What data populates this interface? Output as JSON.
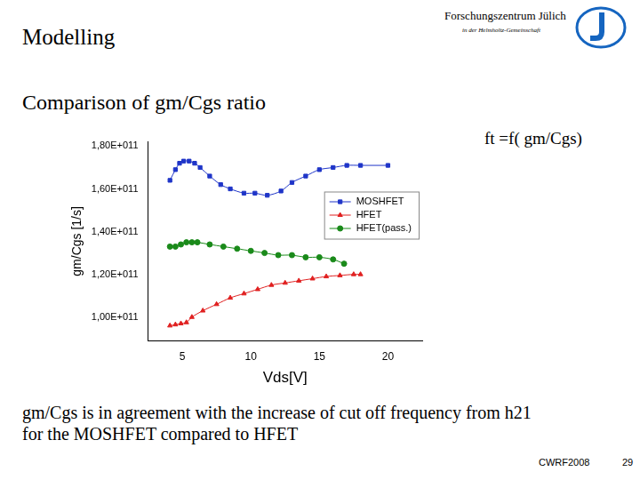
{
  "slide": {
    "title": "Modelling",
    "organization": "Forschungszentrum Jülich",
    "organization_sub": "in der Helmholtz-Gemeinschaft",
    "subtitle": "Comparison of gm/Cgs ratio",
    "formula": "ft =f( gm/Cgs)",
    "caption": [
      "gm/Cgs is in agreement with the increase of cut off frequency from h21",
      "for the MOSHFET compared to HFET"
    ],
    "footer": "CWRF2008",
    "page": "29"
  },
  "chart_data": {
    "type": "line",
    "x_label": "Vds[V]",
    "y_label": "gm/Cgs [1/s]",
    "xlim": [
      2.5,
      22.5
    ],
    "xticks": [
      5,
      10,
      15,
      20
    ],
    "ylim": [
      89000000000.0,
      182000000000.0
    ],
    "yticks": [
      {
        "value": 100000000000.0,
        "label": "1,00E+011"
      },
      {
        "value": 120000000000.0,
        "label": "1,20E+011"
      },
      {
        "value": 140000000000.0,
        "label": "1,40E+011"
      },
      {
        "value": 160000000000.0,
        "label": "1,60E+011"
      },
      {
        "value": 180000000000.0,
        "label": "1,80E+011"
      }
    ],
    "grid": false,
    "legend": "upper right",
    "series": [
      {
        "name": "MOSHFET",
        "color": "#1f35c8",
        "marker": "square",
        "line_style": "solid",
        "x": [
          4.1,
          4.5,
          4.8,
          5.1,
          5.5,
          5.9,
          6.3,
          7.0,
          7.8,
          8.5,
          9.5,
          10.3,
          11.2,
          12.2,
          13.0,
          14.0,
          15.0,
          16.0,
          17.0,
          18.0,
          20.0
        ],
        "values": [
          164000000000.0,
          169000000000.0,
          172000000000.0,
          173000000000.0,
          173000000000.0,
          172000000000.0,
          170000000000.0,
          166000000000.0,
          162000000000.0,
          160000000000.0,
          158000000000.0,
          158000000000.0,
          157000000000.0,
          159000000000.0,
          163000000000.0,
          166000000000.0,
          169000000000.0,
          170000000000.0,
          171000000000.0,
          171000000000.0,
          171000000000.0
        ]
      },
      {
        "name": "HFET",
        "color": "#e02020",
        "marker": "triangle",
        "line_style": "solid",
        "x": [
          4.1,
          4.5,
          4.9,
          5.3,
          5.7,
          6.5,
          7.5,
          8.5,
          9.5,
          10.5,
          11.5,
          12.5,
          13.5,
          14.5,
          15.5,
          16.5,
          17.5,
          18.0
        ],
        "values": [
          96000000000.0,
          96500000000.0,
          97000000000.0,
          97500000000.0,
          100000000000.0,
          103000000000.0,
          106000000000.0,
          109000000000.0,
          111000000000.0,
          113000000000.0,
          115000000000.0,
          116000000000.0,
          117000000000.0,
          118000000000.0,
          119000000000.0,
          119500000000.0,
          120000000000.0,
          120000000000.0
        ]
      },
      {
        "name": "HFET(pass.)",
        "color": "#1a8a1a",
        "marker": "circle",
        "line_style": "solid",
        "x": [
          4.1,
          4.5,
          4.9,
          5.3,
          5.7,
          6.1,
          7.0,
          8.0,
          9.0,
          10.0,
          11.0,
          12.0,
          13.0,
          14.0,
          15.0,
          16.0,
          16.8
        ],
        "values": [
          133000000000.0,
          133000000000.0,
          134000000000.0,
          135000000000.0,
          135000000000.0,
          135000000000.0,
          134000000000.0,
          133000000000.0,
          132000000000.0,
          131000000000.0,
          130000000000.0,
          129000000000.0,
          129000000000.0,
          128000000000.0,
          128000000000.0,
          127000000000.0,
          125000000000.0
        ]
      }
    ]
  }
}
